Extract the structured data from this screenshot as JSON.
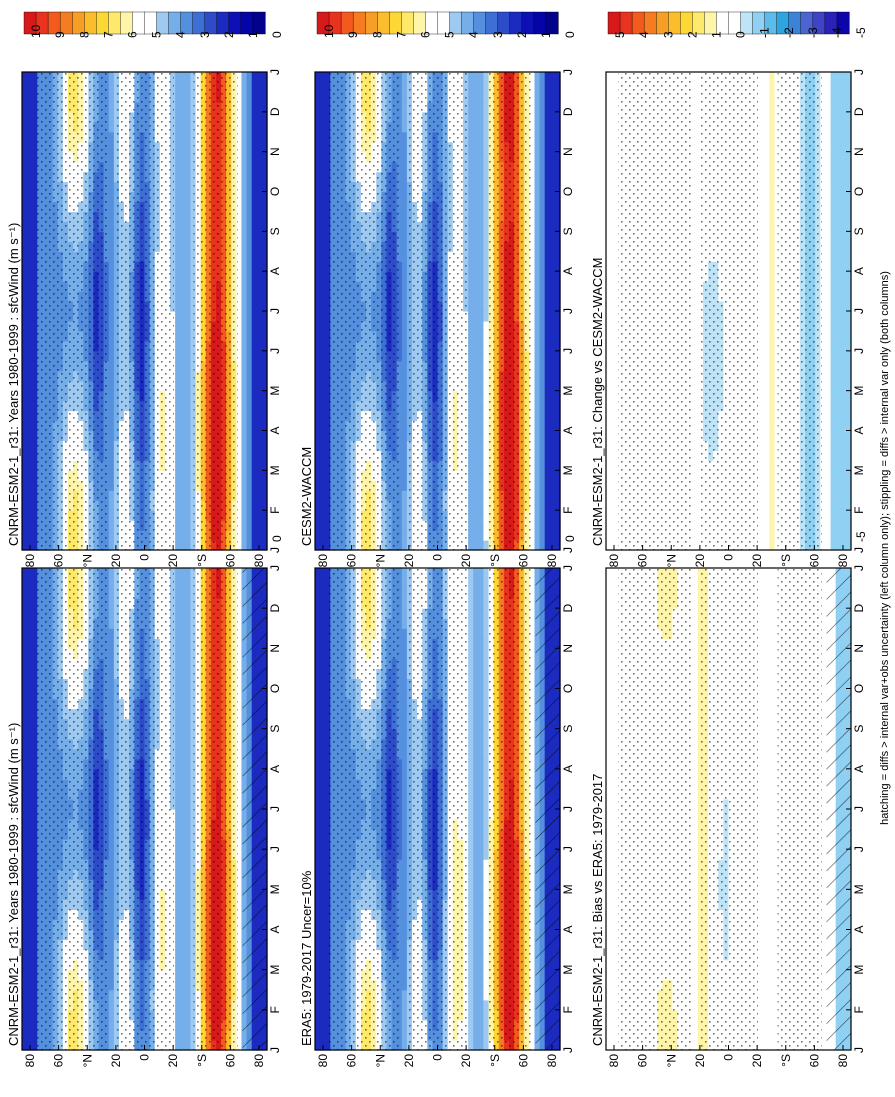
{
  "figure": {
    "footnote": "hatching = diffs > internal var+obs uncertainty (left column only); stippling = diffs > internal var only (both columns)"
  },
  "colors": {
    "abs_scale": [
      "#ffffff"
    ],
    "diff_scale": [
      "#ffffff"
    ]
  },
  "chart_data": [
    {
      "type": "heatmap",
      "id": "model-climatology-left",
      "title": "CNRM-ESM2-1_r31: Years 1980-1999 : sfcWind (m s⁻¹)",
      "x_ticks": [
        "J",
        "F",
        "M",
        "A",
        "M",
        "J",
        "J",
        "A",
        "S",
        "O",
        "N",
        "D",
        "J"
      ],
      "y_ticks": [
        "80",
        "60",
        "°N",
        "20",
        "0",
        "20",
        "°S",
        "60",
        "80"
      ],
      "colorbar_labels": [
        "10",
        "9",
        "8",
        "7",
        "6",
        "5",
        "4",
        "3",
        "2",
        "1",
        "0"
      ],
      "scale": "abs"
    },
    {
      "type": "heatmap",
      "id": "obs-climatology",
      "title": "ERA5: 1979-2017 Uncer=10%",
      "x_ticks": [
        "J",
        "F",
        "M",
        "A",
        "M",
        "J",
        "J",
        "A",
        "S",
        "O",
        "N",
        "D",
        "J"
      ],
      "y_ticks": [
        "80",
        "60",
        "°N",
        "20",
        "0",
        "20",
        "°S",
        "60",
        "80"
      ],
      "colorbar_labels": [
        "10",
        "9",
        "8",
        "7",
        "6",
        "5",
        "4",
        "3",
        "2",
        "1",
        "0"
      ],
      "scale": "abs"
    },
    {
      "type": "heatmap",
      "id": "bias-vs-obs",
      "title": "CNRM-ESM2-1_r31: Bias vs ERA5: 1979-2017",
      "x_ticks": [
        "J",
        "F",
        "M",
        "A",
        "M",
        "J",
        "J",
        "A",
        "S",
        "O",
        "N",
        "D",
        "J"
      ],
      "y_ticks": [
        "80",
        "60",
        "°N",
        "20",
        "0",
        "20",
        "°S",
        "60",
        "80"
      ],
      "colorbar_labels": [
        "5",
        "4",
        "3",
        "2",
        "1",
        "0",
        "-1",
        "-2",
        "-3",
        "-4",
        "-5"
      ],
      "scale": "diff"
    },
    {
      "type": "heatmap",
      "id": "model-climatology-right",
      "title": "CNRM-ESM2-1_r31: Years 1980-1999 : sfcWind (m s⁻¹)",
      "x_ticks": [
        "J",
        "F",
        "M",
        "A",
        "M",
        "J",
        "J",
        "A",
        "S",
        "O",
        "N",
        "D",
        "J"
      ],
      "y_ticks": [
        "80",
        "60",
        "°N",
        "20",
        "0",
        "20",
        "°S",
        "60",
        "80"
      ],
      "colorbar_labels": [
        "10",
        "9",
        "8",
        "7",
        "6",
        "5",
        "4",
        "3",
        "2",
        "1",
        "0"
      ],
      "scale": "abs"
    },
    {
      "type": "heatmap",
      "id": "reference-model-climatology",
      "title": "CESM2-WACCM",
      "x_ticks": [
        "J",
        "F",
        "M",
        "A",
        "M",
        "J",
        "J",
        "A",
        "S",
        "O",
        "N",
        "D",
        "J"
      ],
      "y_ticks": [
        "80",
        "60",
        "°N",
        "20",
        "0",
        "20",
        "°S",
        "60",
        "80"
      ],
      "colorbar_labels": [
        "10",
        "9",
        "8",
        "7",
        "6",
        "5",
        "4",
        "3",
        "2",
        "1",
        "0"
      ],
      "scale": "abs"
    },
    {
      "type": "heatmap",
      "id": "change-vs-reference",
      "title": "CNRM-ESM2-1_r31: Change vs CESM2-WACCM",
      "x_ticks": [
        "J",
        "F",
        "M",
        "A",
        "M",
        "J",
        "J",
        "A",
        "S",
        "O",
        "N",
        "D",
        "J"
      ],
      "y_ticks": [
        "80",
        "60",
        "°N",
        "20",
        "0",
        "20",
        "°S",
        "60",
        "80"
      ],
      "colorbar_labels": [
        "5",
        "4",
        "3",
        "2",
        "1",
        "0",
        "-1",
        "-2",
        "-3",
        "-4",
        "-5"
      ],
      "scale": "diff"
    }
  ]
}
